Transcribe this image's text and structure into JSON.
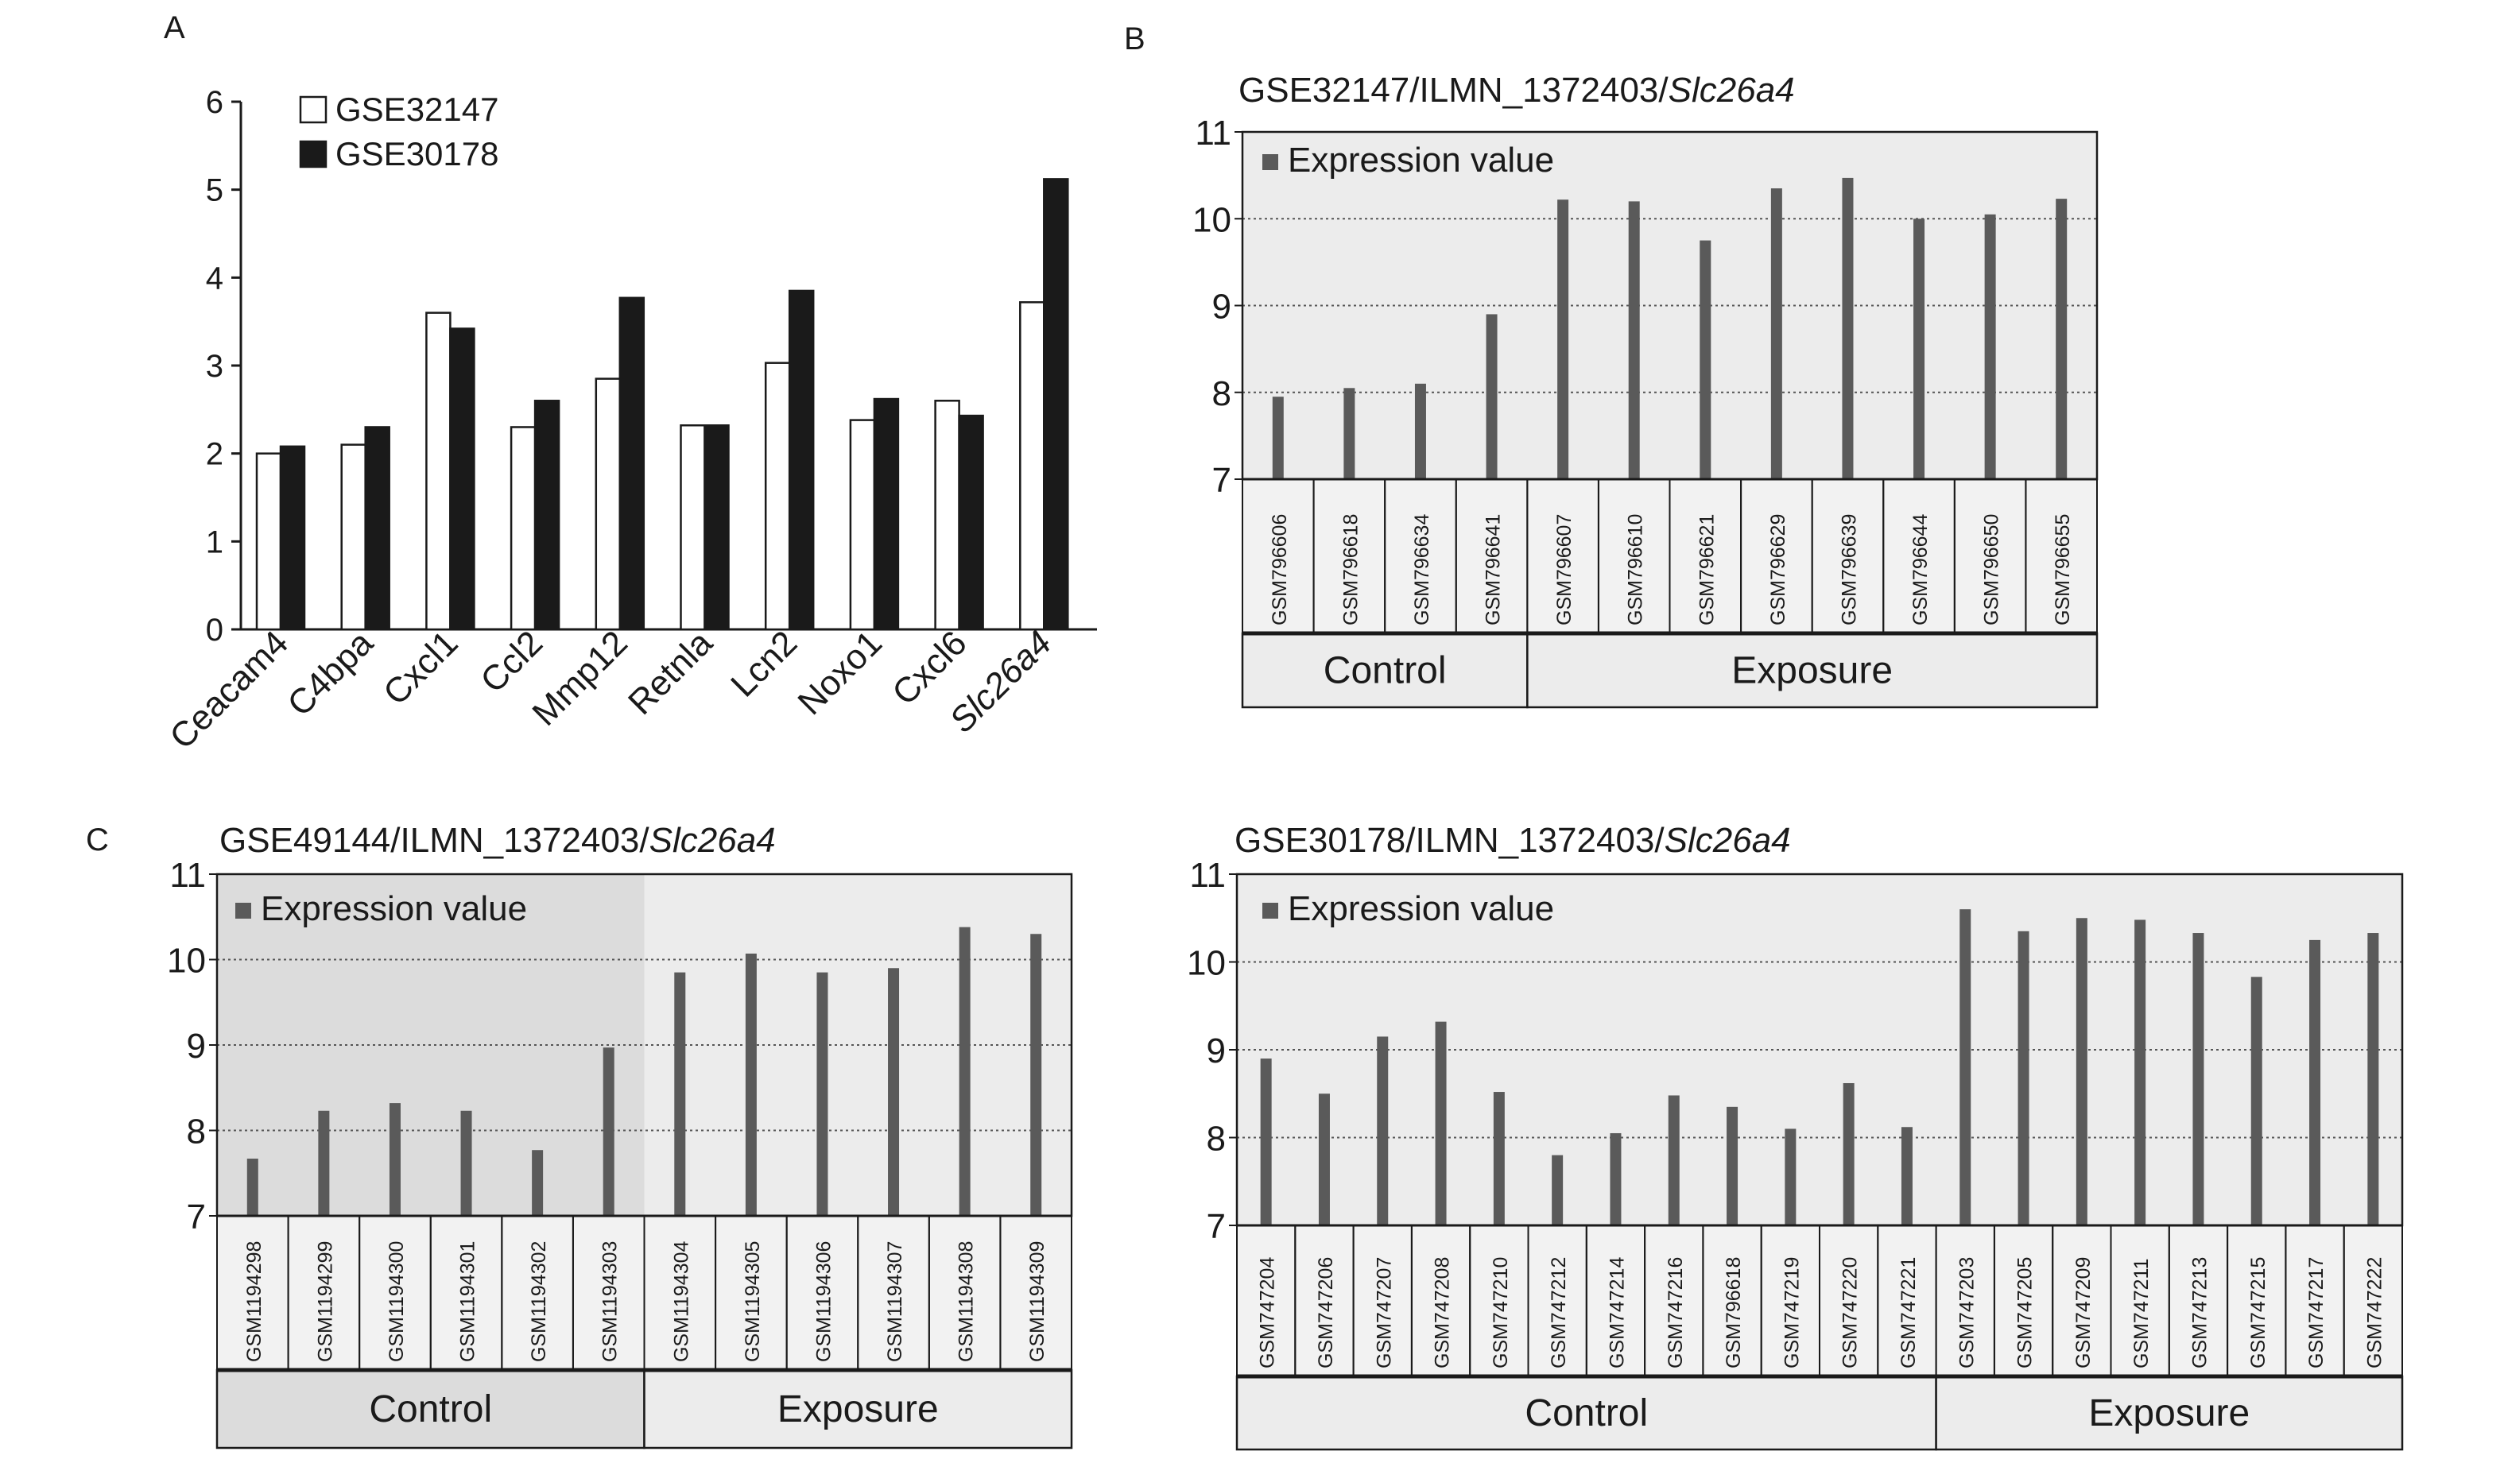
{
  "panels": {
    "A": {
      "label": "A"
    },
    "B": {
      "label": "B"
    },
    "C": {
      "label": "C"
    }
  },
  "chart_data": [
    {
      "type": "bar",
      "panel": "A",
      "categories": [
        "Ceacam4",
        "C4bpa",
        "Cxcl1",
        "Ccl2",
        "Mmp12",
        "Retnla",
        "Lcn2",
        "Noxo1",
        "Cxcl6",
        "Slc26a4"
      ],
      "series": [
        {
          "name": "GSE32147",
          "values": [
            2.0,
            2.1,
            3.6,
            2.3,
            2.85,
            2.32,
            3.03,
            2.38,
            2.6,
            3.72
          ]
        },
        {
          "name": "GSE30178",
          "values": [
            2.08,
            2.3,
            3.42,
            2.6,
            3.77,
            2.32,
            3.85,
            2.62,
            2.43,
            5.12
          ]
        }
      ],
      "ylim": [
        0,
        6
      ],
      "yticks": [
        0,
        1,
        2,
        3,
        4,
        5,
        6
      ],
      "legend": "top-left",
      "colors": {
        "GSE32147": "#ffffff",
        "GSE30178": "#1a1a1a"
      }
    },
    {
      "type": "bar",
      "panel": "B",
      "title_parts": [
        "GSE32147/ILMN_1372403/",
        "Slc26a4"
      ],
      "legend_label": "Expression value",
      "categories": [
        "GSM796606",
        "GSM796618",
        "GSM796634",
        "GSM796641",
        "GSM796607",
        "GSM796610",
        "GSM796621",
        "GSM796629",
        "GSM796639",
        "GSM796644",
        "GSM796650",
        "GSM796655"
      ],
      "values": [
        7.95,
        8.05,
        8.1,
        8.9,
        10.22,
        10.2,
        9.75,
        10.35,
        10.47,
        10.0,
        10.05,
        10.23
      ],
      "groups": [
        {
          "name": "Control",
          "count": 4
        },
        {
          "name": "Exposure",
          "count": 8
        }
      ],
      "ylim": [
        7,
        11
      ],
      "yticks": [
        7,
        8,
        9,
        10,
        11
      ],
      "bar_color": "#5a5a5a",
      "plot_bg": "#ececec"
    },
    {
      "type": "bar",
      "panel": "C",
      "title_parts": [
        "GSE49144/ILMN_1372403/",
        "Slc26a4"
      ],
      "legend_label": "Expression value",
      "categories": [
        "GSM1194298",
        "GSM1194299",
        "GSM1194300",
        "GSM1194301",
        "GSM1194302",
        "GSM1194303",
        "GSM1194304",
        "GSM1194305",
        "GSM1194306",
        "GSM1194307",
        "GSM1194308",
        "GSM1194309"
      ],
      "values": [
        7.67,
        8.23,
        8.32,
        8.23,
        7.77,
        8.97,
        9.85,
        10.07,
        9.85,
        9.9,
        10.38,
        10.3
      ],
      "groups": [
        {
          "name": "Control",
          "count": 6
        },
        {
          "name": "Exposure",
          "count": 6
        }
      ],
      "ylim": [
        7,
        11
      ],
      "yticks": [
        7,
        8,
        9,
        10,
        11
      ],
      "bar_color": "#5a5a5a",
      "plot_bg": "#ececec",
      "control_bg": "#dcdcdc"
    },
    {
      "type": "bar",
      "panel": "D",
      "title_parts": [
        "GSE30178/ILMN_1372403/",
        "Slc26a4"
      ],
      "legend_label": "Expression value",
      "categories": [
        "GSM747204",
        "GSM747206",
        "GSM747207",
        "GSM747208",
        "GSM747210",
        "GSM747212",
        "GSM747214",
        "GSM747216",
        "GSM796618",
        "GSM747219",
        "GSM747220",
        "GSM747221",
        "GSM747203",
        "GSM747205",
        "GSM747209",
        "GSM747211",
        "GSM747213",
        "GSM747215",
        "GSM747217",
        "GSM747222"
      ],
      "values": [
        8.9,
        8.5,
        9.15,
        9.32,
        8.52,
        7.8,
        8.05,
        8.48,
        8.35,
        8.1,
        8.62,
        8.12,
        10.6,
        10.35,
        10.5,
        10.48,
        10.33,
        9.83,
        10.25,
        10.33
      ],
      "groups": [
        {
          "name": "Control",
          "count": 12
        },
        {
          "name": "Exposure",
          "count": 8
        }
      ],
      "ylim": [
        7,
        11
      ],
      "yticks": [
        7,
        8,
        9,
        10,
        11
      ],
      "bar_color": "#5a5a5a",
      "plot_bg": "#ececec"
    }
  ]
}
